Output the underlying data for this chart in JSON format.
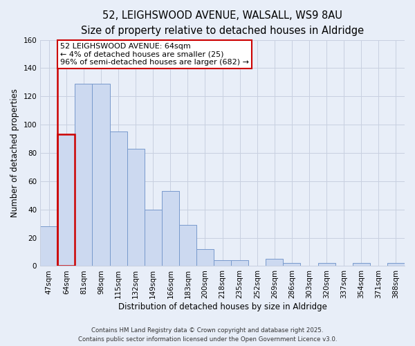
{
  "title_line1": "52, LEIGHSWOOD AVENUE, WALSALL, WS9 8AU",
  "title_line2": "Size of property relative to detached houses in Aldridge",
  "xlabel": "Distribution of detached houses by size in Aldridge",
  "ylabel": "Number of detached properties",
  "bar_labels": [
    "47sqm",
    "64sqm",
    "81sqm",
    "98sqm",
    "115sqm",
    "132sqm",
    "149sqm",
    "166sqm",
    "183sqm",
    "200sqm",
    "218sqm",
    "235sqm",
    "252sqm",
    "269sqm",
    "286sqm",
    "303sqm",
    "320sqm",
    "337sqm",
    "354sqm",
    "371sqm",
    "388sqm"
  ],
  "bar_values": [
    28,
    93,
    129,
    129,
    95,
    83,
    40,
    53,
    29,
    12,
    4,
    4,
    0,
    5,
    2,
    0,
    2,
    0,
    2,
    0,
    2
  ],
  "highlight_bar_index": 1,
  "bar_face_color": "#ccd9f0",
  "bar_edge_color": "#7799cc",
  "highlight_edge_color": "#cc0000",
  "ylim": [
    0,
    160
  ],
  "yticks": [
    0,
    20,
    40,
    60,
    80,
    100,
    120,
    140,
    160
  ],
  "annotation_text": "52 LEIGHSWOOD AVENUE: 64sqm\n← 4% of detached houses are smaller (25)\n96% of semi-detached houses are larger (682) →",
  "annotation_box_color": "#ffffff",
  "annotation_box_edge": "#cc0000",
  "footer_line1": "Contains HM Land Registry data © Crown copyright and database right 2025.",
  "footer_line2": "Contains public sector information licensed under the Open Government Licence v3.0.",
  "background_color": "#e8eef8",
  "plot_bg_color": "#e8eef8",
  "grid_color": "#c8d0e0",
  "title_fontsize": 10.5,
  "subtitle_fontsize": 9.5,
  "tick_fontsize": 7.5,
  "ylabel_fontsize": 8.5,
  "xlabel_fontsize": 8.5,
  "annotation_fontsize": 8
}
